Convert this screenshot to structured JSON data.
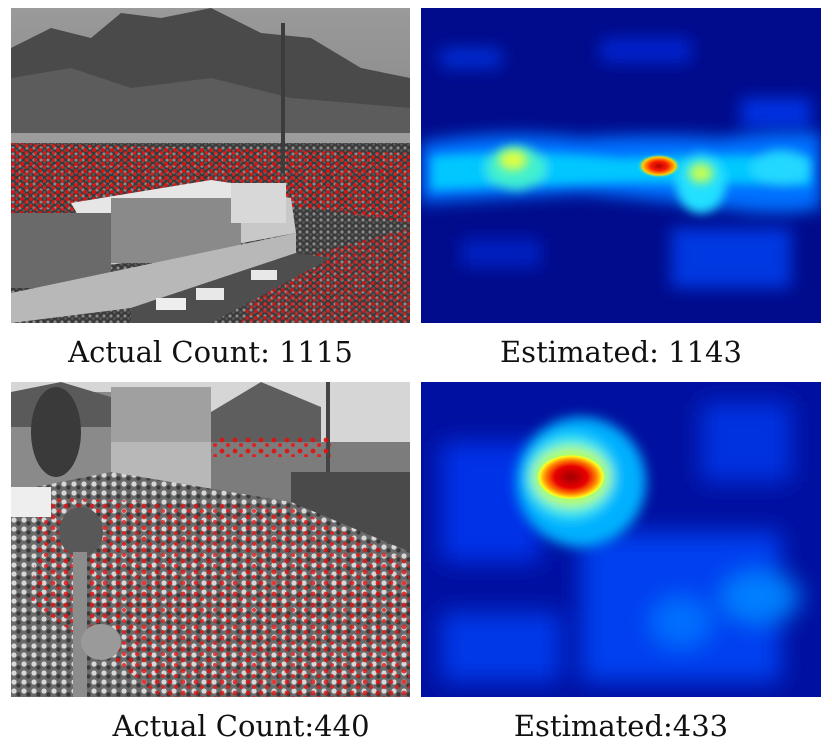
{
  "figure": {
    "rows": [
      {
        "photo": {
          "label": "crowd-photo-stadium"
        },
        "density_map": {
          "label": "density-map-stadium"
        },
        "actual_caption": "Actual Count: 1115",
        "estimated_caption": "Estimated: 1143"
      },
      {
        "photo": {
          "label": "crowd-photo-street"
        },
        "density_map": {
          "label": "density-map-street"
        },
        "actual_caption": "Actual Count:440",
        "estimated_caption": "Estimated:433"
      }
    ],
    "colors": {
      "annotation_dot": "#e01010",
      "map_low": "#00008a",
      "map_mid": "#00c8ff",
      "map_high": "#ffff00",
      "map_peak": "#d40000"
    }
  }
}
